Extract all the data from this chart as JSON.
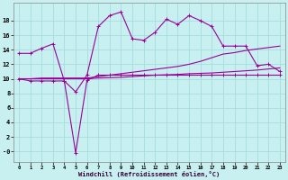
{
  "xlabel": "Windchill (Refroidissement éolien,°C)",
  "background_color": "#c8f0f0",
  "grid_color": "#a0d8d8",
  "line_color": "#990099",
  "xlim": [
    -0.5,
    23.5
  ],
  "ylim": [
    -1.5,
    20.5
  ],
  "xticks": [
    0,
    1,
    2,
    3,
    4,
    5,
    6,
    7,
    8,
    9,
    10,
    11,
    12,
    13,
    14,
    15,
    16,
    17,
    18,
    19,
    20,
    21,
    22,
    23
  ],
  "yticks": [
    0,
    2,
    4,
    6,
    8,
    10,
    12,
    14,
    16,
    18
  ],
  "line1_x": [
    0,
    1,
    2,
    3,
    4,
    5,
    6,
    7,
    8,
    9,
    10,
    11,
    12,
    13,
    14,
    15,
    16,
    17,
    18,
    19,
    20,
    21,
    22,
    23
  ],
  "line1_y": [
    13.5,
    13.5,
    14.2,
    14.8,
    9.7,
    8.2,
    10.5,
    17.2,
    18.7,
    19.2,
    15.5,
    15.3,
    16.4,
    18.2,
    17.5,
    18.7,
    18.0,
    17.2,
    14.5,
    14.5,
    14.5,
    11.8,
    12.0,
    11.0
  ],
  "line2_x": [
    0,
    1,
    2,
    3,
    4,
    5,
    6,
    7,
    8,
    9,
    10,
    11,
    12,
    13,
    14,
    15,
    16,
    17,
    18,
    19,
    20,
    21,
    22,
    23
  ],
  "line2_y": [
    10.0,
    9.7,
    9.7,
    9.7,
    9.7,
    -0.2,
    9.8,
    10.5,
    10.5,
    10.5,
    10.5,
    10.5,
    10.5,
    10.5,
    10.5,
    10.5,
    10.5,
    10.5,
    10.5,
    10.5,
    10.5,
    10.5,
    10.5,
    10.5
  ],
  "line3_x": [
    0,
    1,
    2,
    3,
    4,
    5,
    6,
    7,
    8,
    9,
    10,
    11,
    12,
    13,
    14,
    15,
    16,
    17,
    18,
    19,
    20,
    21,
    22,
    23
  ],
  "line3_y": [
    10.0,
    10.0,
    10.1,
    10.1,
    10.1,
    10.1,
    10.1,
    10.3,
    10.5,
    10.7,
    10.9,
    11.1,
    11.3,
    11.5,
    11.7,
    12.0,
    12.4,
    12.9,
    13.4,
    13.6,
    13.9,
    14.1,
    14.3,
    14.5
  ],
  "line4_x": [
    0,
    1,
    2,
    3,
    4,
    5,
    6,
    7,
    8,
    9,
    10,
    11,
    12,
    13,
    14,
    15,
    16,
    17,
    18,
    19,
    20,
    21,
    22,
    23
  ],
  "line4_y": [
    10.0,
    10.0,
    10.0,
    10.0,
    10.0,
    10.0,
    10.0,
    10.1,
    10.15,
    10.2,
    10.3,
    10.4,
    10.5,
    10.55,
    10.6,
    10.7,
    10.75,
    10.8,
    10.9,
    11.0,
    11.1,
    11.2,
    11.35,
    11.5
  ]
}
